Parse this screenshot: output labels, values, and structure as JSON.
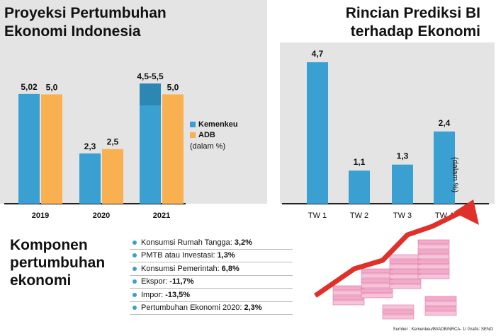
{
  "left": {
    "title": "Proyeksi Pertumbuhan\nEkonomi Indonesia",
    "legend": {
      "kemenkeu": "Kemenkeu",
      "adb": "ADB",
      "unit": "(dalam %)"
    }
  },
  "right": {
    "title": "Rincian Prediksi  BI\nterhadap Ekonomi",
    "unit": "(dalam %)"
  },
  "components": {
    "title": "Komponen\npertumbuhan\nekonomi",
    "items": [
      {
        "label": "Konsumsi Rumah Tangga:",
        "value": "3,2%"
      },
      {
        "label": "PMTB atau Investasi:",
        "value": "1,3%"
      },
      {
        "label": "Konsumsi Pemerintah:",
        "value": "6,8%"
      },
      {
        "label": "Ekspor:",
        "value": "-11,7%"
      },
      {
        "label": "Impor:",
        "value": "-13,5%"
      },
      {
        "label": "Pertumbuhan Ekonomi 2020:",
        "value": "2,3%"
      }
    ]
  },
  "source": "Sumber : Kemenkeu/BI/ADB/NRCA- 1/ Grafis: SENO",
  "colors": {
    "kemenkeu": "#3aa0d2",
    "adb": "#f9b050",
    "bi": "#3aa0d2",
    "arrow": "#e0302a",
    "panel": "#e4e4e4"
  },
  "chart_data": [
    {
      "type": "bar",
      "title": "Proyeksi Pertumbuhan Ekonomi Indonesia",
      "categories": [
        "2019",
        "2020",
        "2021"
      ],
      "series": [
        {
          "name": "Kemenkeu",
          "values": [
            5.02,
            2.3,
            5.5
          ],
          "range_2021": [
            4.5,
            5.5
          ],
          "labels": [
            "5,02",
            "2,3",
            "4,5-5,5"
          ]
        },
        {
          "name": "ADB",
          "values": [
            5.0,
            2.5,
            5.0
          ],
          "labels": [
            "5,0",
            "2,5",
            "5,0"
          ]
        }
      ],
      "ylabel": "(dalam %)",
      "ylim": [
        0,
        6
      ],
      "legend": "right"
    },
    {
      "type": "bar",
      "title": "Rincian Prediksi BI terhadap Ekonomi",
      "categories": [
        "TW 1",
        "TW 2",
        "TW 3",
        "TW 4"
      ],
      "values": [
        4.7,
        1.1,
        1.3,
        2.4
      ],
      "labels": [
        "4,7",
        "1,1",
        "1,3",
        "2,4"
      ],
      "ylabel": "(dalam %)",
      "ylim": [
        0,
        5
      ]
    }
  ]
}
